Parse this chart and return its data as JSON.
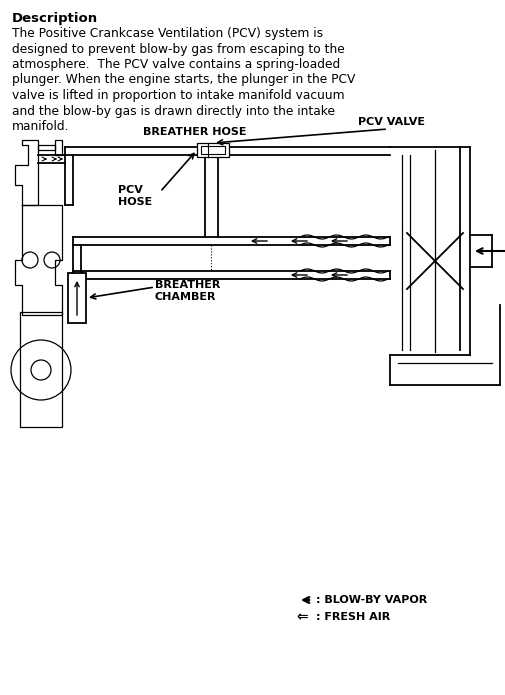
{
  "bg_color": "#ffffff",
  "text_color": "#000000",
  "title": "Description",
  "body_lines": [
    "The Positive Crankcase Ventilation (PCV) system is",
    "designed to prevent blow-by gas from escaping to the",
    "atmosphere.  The PCV valve contains a spring-loaded",
    "plunger. When the engine starts, the plunger in the PCV",
    "valve is lifted in proportion to intake manifold vacuum",
    "and the blow-by gas is drawn directly into the intake",
    "manifold."
  ],
  "label_breather_hose": "BREATHER HOSE",
  "label_pcv_valve": "PCV VALVE",
  "label_pcv_hose": "PCV\nHOSE",
  "label_breather_chamber": "BREATHER\nCHAMBER",
  "legend_blowby": "←: BLOW-BY VAPOR",
  "legend_fresh": "⇐: FRESH AIR",
  "figsize": [
    5.06,
    6.95
  ],
  "dpi": 100
}
